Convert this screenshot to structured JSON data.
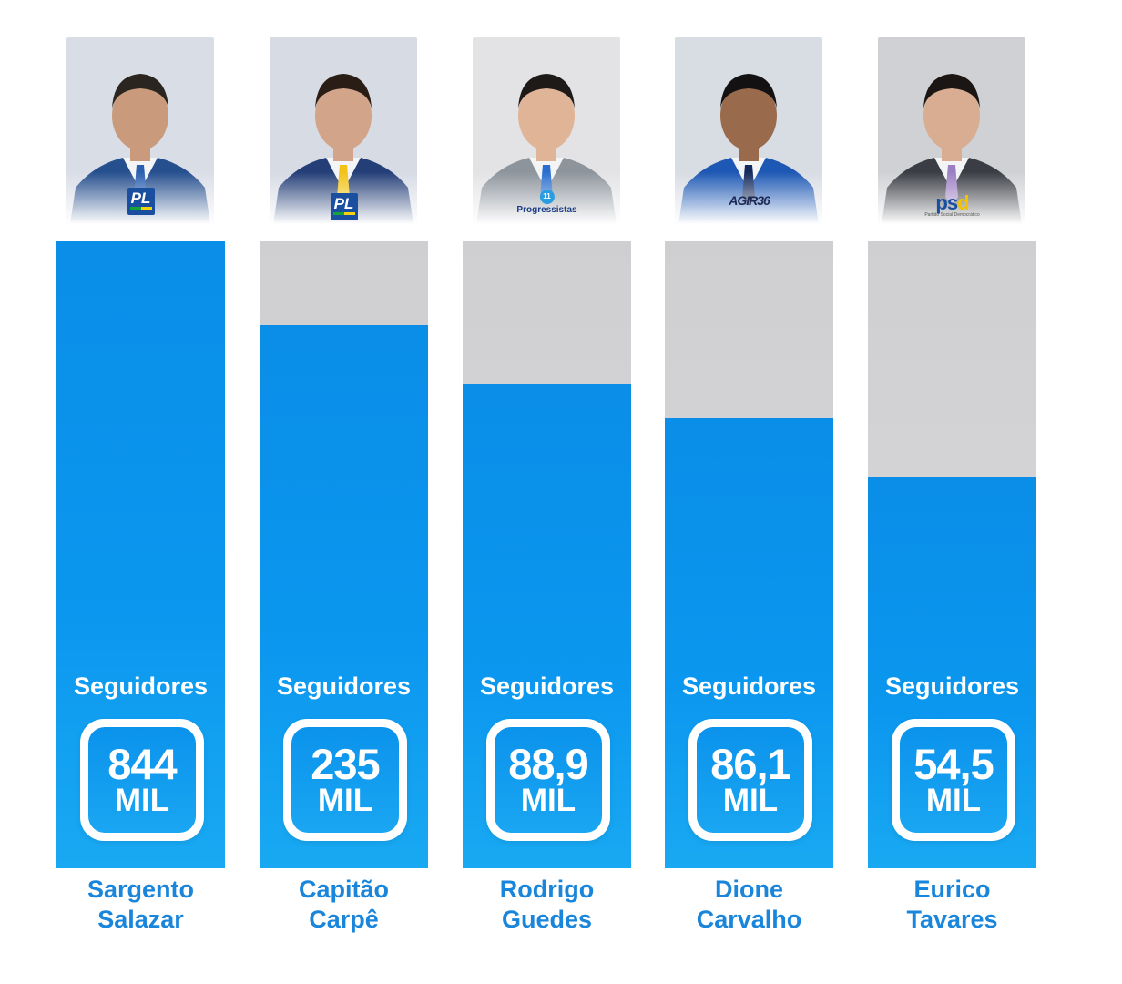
{
  "chart_data": {
    "type": "bar",
    "categories": [
      "Sargento Salazar",
      "Capitão Carpê",
      "Rodrigo Guedes",
      "Dione Carvalho",
      "Eurico Tavares"
    ],
    "values": [
      844,
      235,
      88.9,
      86.1,
      54.5
    ],
    "unit": "MIL",
    "value_label_prefix": "Seguidores",
    "bar_fill_fraction": [
      1.0,
      0.865,
      0.77,
      0.717,
      0.624
    ],
    "colors": {
      "bar": "#0b97ef",
      "track": "#d4d4d6",
      "name_text": "#1a86db"
    }
  },
  "columns": [
    {
      "name_line1": "Sargento",
      "name_line2": "Salazar",
      "label": "Seguidores",
      "value_text": "844",
      "unit": "MIL",
      "party_logo": "pl-logo",
      "party_text": "PL",
      "photo": {
        "bg": "#d9dde6",
        "suit": "#264f8e",
        "skin": "#c99a7c",
        "hair": "#2b2520",
        "tie": "#2a5fb0"
      }
    },
    {
      "name_line1": "Capitão",
      "name_line2": "Carpê",
      "label": "Seguidores",
      "value_text": "235",
      "unit": "MIL",
      "party_logo": "pl-logo",
      "party_text": "PL",
      "photo": {
        "bg": "#d6dbe4",
        "suit": "#243f78",
        "skin": "#d2a48a",
        "hair": "#2a1d16",
        "tie": "#f2c316"
      }
    },
    {
      "name_line1": "Rodrigo",
      "name_line2": "Guedes",
      "label": "Seguidores",
      "value_text": "88,9",
      "unit": "MIL",
      "party_logo": "progressistas-logo",
      "party_text": "Progressistas",
      "party_number": "11",
      "photo": {
        "bg": "#e3e3e6",
        "suit": "#8d949c",
        "skin": "#e0b497",
        "hair": "#1e1a18",
        "tie": "#2a6fd0"
      }
    },
    {
      "name_line1": "Dione",
      "name_line2": "Carvalho",
      "label": "Seguidores",
      "value_text": "86,1",
      "unit": "MIL",
      "party_logo": "agir-logo",
      "party_text": "AGIR36",
      "photo": {
        "bg": "#d8dce3",
        "suit": "#1d58b4",
        "skin": "#9a6a4c",
        "hair": "#141112",
        "tie": "#142a5c"
      }
    },
    {
      "name_line1": "Eurico",
      "name_line2": "Tavares",
      "label": "Seguidores",
      "value_text": "54,5",
      "unit": "MIL",
      "party_logo": "psd-logo",
      "party_text": "psd",
      "party_subtext": "Partido Social Democrático",
      "photo": {
        "bg": "#cfd1d4",
        "suit": "#3a3d44",
        "skin": "#d8ad92",
        "hair": "#1b1614",
        "tie": "#9b7fc2"
      }
    }
  ]
}
